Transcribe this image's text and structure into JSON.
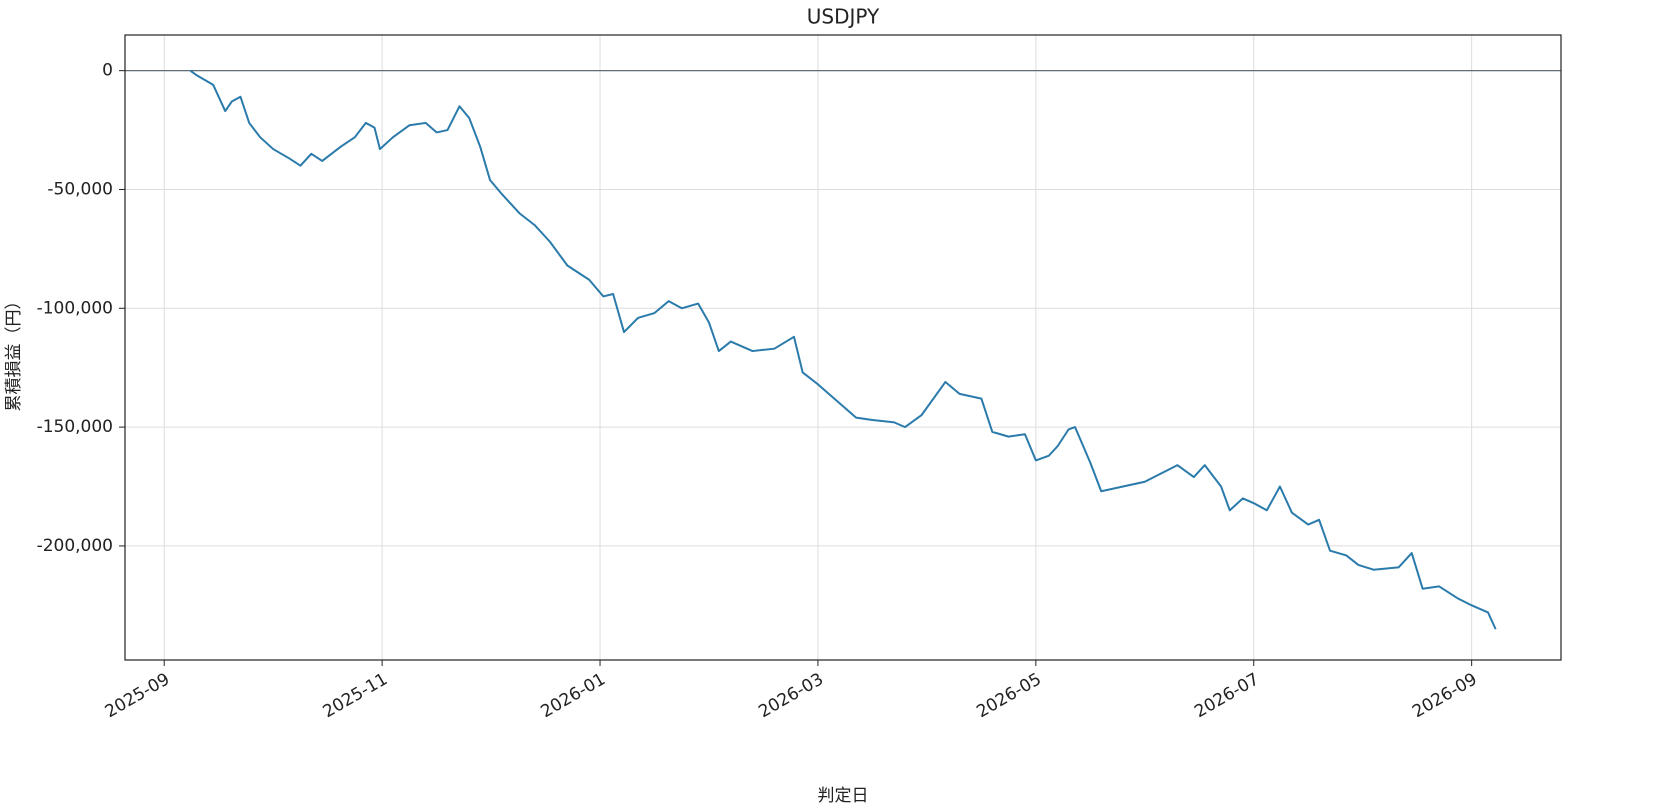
{
  "chart_data": {
    "type": "line",
    "title": "USDJPY",
    "x_label": "判定日",
    "y_label": "累積損益（円）",
    "xlim": [
      -0.36,
      12.82
    ],
    "xticks": [
      {
        "value": 0,
        "label": "2025-09"
      },
      {
        "value": 2,
        "label": "2025-11"
      },
      {
        "value": 4,
        "label": "2026-01"
      },
      {
        "value": 6,
        "label": "2026-03"
      },
      {
        "value": 8,
        "label": "2026-05"
      },
      {
        "value": 10,
        "label": "2026-07"
      },
      {
        "value": 12,
        "label": "2026-09"
      }
    ],
    "ylim": [
      -248000,
      15000
    ],
    "yticks": [
      0,
      {
        "value": -50000,
        "label": "-50,000"
      },
      {
        "value": -100000,
        "label": "-100,000"
      },
      {
        "value": -150000,
        "label": "-150,000"
      },
      {
        "value": -200000,
        "label": "-200,000"
      }
    ],
    "hline": 0,
    "grid": true,
    "x": [
      0.24,
      0.3,
      0.45,
      0.56,
      0.62,
      0.7,
      0.78,
      0.88,
      1.0,
      1.15,
      1.25,
      1.35,
      1.45,
      1.62,
      1.75,
      1.85,
      1.93,
      1.98,
      2.1,
      2.25,
      2.4,
      2.5,
      2.6,
      2.71,
      2.8,
      2.9,
      2.99,
      3.1,
      3.26,
      3.4,
      3.54,
      3.7,
      3.9,
      4.03,
      4.12,
      4.22,
      4.35,
      4.5,
      4.63,
      4.75,
      4.9,
      5.0,
      5.09,
      5.2,
      5.4,
      5.6,
      5.78,
      5.86,
      6.0,
      6.15,
      6.35,
      6.5,
      6.7,
      6.8,
      6.95,
      7.17,
      7.3,
      7.5,
      7.6,
      7.75,
      7.9,
      8.0,
      8.12,
      8.2,
      8.3,
      8.36,
      8.5,
      8.6,
      8.8,
      9.0,
      9.3,
      9.45,
      9.55,
      9.7,
      9.78,
      9.9,
      10.0,
      10.12,
      10.24,
      10.35,
      10.5,
      10.6,
      10.7,
      10.85,
      10.96,
      11.1,
      11.33,
      11.45,
      11.55,
      11.7,
      11.87,
      12.0,
      12.15,
      12.22
    ],
    "series": [
      {
        "name": "USDJPY",
        "color": "#2a7bab",
        "values": [
          0,
          -2000,
          -6000,
          -17000,
          -13000,
          -11000,
          -22000,
          -28000,
          -33000,
          -37000,
          -40000,
          -35000,
          -38000,
          -32000,
          -28000,
          -22000,
          -24000,
          -33000,
          -28000,
          -23000,
          -22000,
          -26000,
          -25000,
          -15000,
          -20000,
          -32000,
          -46000,
          -52000,
          -60000,
          -65000,
          -72000,
          -82000,
          -88000,
          -95000,
          -94000,
          -110000,
          -104000,
          -102000,
          -97000,
          -100000,
          -98000,
          -106000,
          -118000,
          -114000,
          -118000,
          -117000,
          -112000,
          -127000,
          -132000,
          -138000,
          -146000,
          -147000,
          -148000,
          -150000,
          -145000,
          -131000,
          -136000,
          -138000,
          -152000,
          -154000,
          -153000,
          -164000,
          -162000,
          -158000,
          -151000,
          -150000,
          -165000,
          -177000,
          -175000,
          -173000,
          -166000,
          -171000,
          -166000,
          -175000,
          -185000,
          -180000,
          -182000,
          -185000,
          -175000,
          -186000,
          -191000,
          -189000,
          -202000,
          -204000,
          -208000,
          -210000,
          -209000,
          -203000,
          -218000,
          -217000,
          -222000,
          -225000,
          -228000,
          -235000
        ]
      }
    ]
  }
}
